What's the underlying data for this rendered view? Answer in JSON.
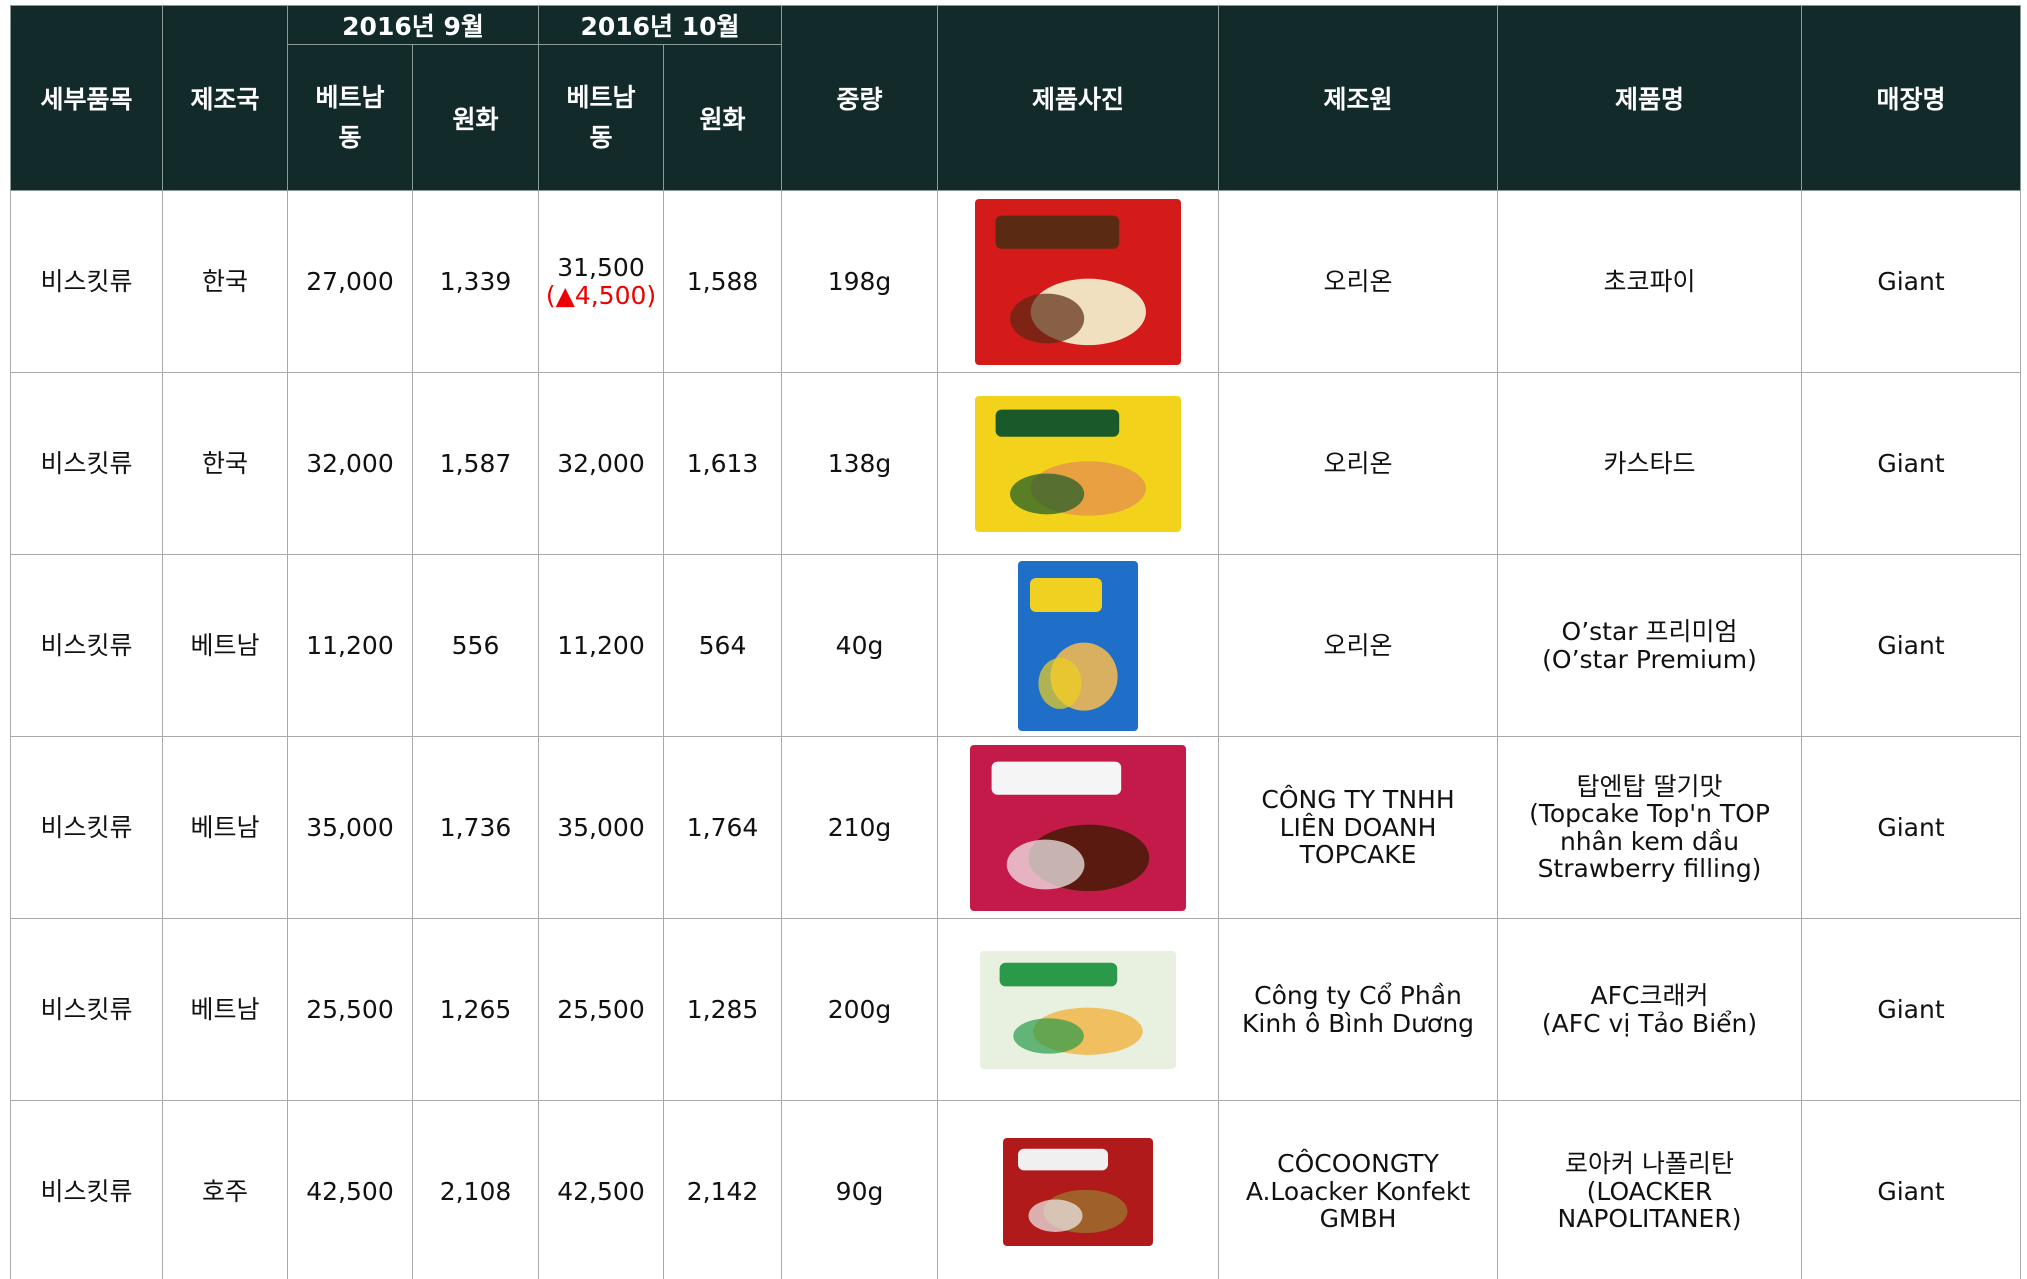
{
  "table": {
    "header": {
      "columns": [
        "세부품목",
        "제조국",
        "2016년 9월",
        "2016년 10월",
        "베트남동",
        "원화",
        "베트남동",
        "원화",
        "중량",
        "제품사진",
        "제조원",
        "제품명",
        "매장명"
      ]
    },
    "rows": [
      {
        "item": "비스킷류",
        "country": "한국",
        "sep_vnd": "27,000",
        "sep_krw": "1,339",
        "oct_vnd": "31,500",
        "oct_change": "(▲4,500)",
        "oct_krw": "1,588",
        "weight": "198g",
        "maker": "오리온",
        "name": "초코파이",
        "store": "Giant"
      },
      {
        "item": "비스킷류",
        "country": "한국",
        "sep_vnd": "32,000",
        "sep_krw": "1,587",
        "oct_vnd": "32,000",
        "oct_krw": "1,613",
        "weight": "138g",
        "maker": "오리온",
        "name": "카스타드",
        "store": "Giant"
      },
      {
        "item": "비스킷류",
        "country": "베트남",
        "sep_vnd": "11,200",
        "sep_krw": "556",
        "oct_vnd": "11,200",
        "oct_krw": "564",
        "weight": "40g",
        "maker": "오리온",
        "name": "O’star 프리미엄\n(O’star Premium)",
        "store": "Giant"
      },
      {
        "item": "비스킷류",
        "country": "베트남",
        "sep_vnd": "35,000",
        "sep_krw": "1,736",
        "oct_vnd": "35,000",
        "oct_krw": "1,764",
        "weight": "210g",
        "maker": "CÔNG TY TNHH\nLIÊN DOANH\nTOPCAKE",
        "name": "탑엔탑 딸기맛\n(Topcake Top'n TOP\nnhân kem dầu\nStrawberry filling)",
        "store": "Giant"
      },
      {
        "item": "비스킷류",
        "country": "베트남",
        "sep_vnd": "25,500",
        "sep_krw": "1,265",
        "oct_vnd": "25,500",
        "oct_krw": "1,285",
        "weight": "200g",
        "maker": "Công ty  Cổ Phần\nKinh ô Bình Dương",
        "name": "AFC크래커\n(AFC vị Tảo Biển)",
        "store": "Giant"
      },
      {
        "item": "비스킷류",
        "country": "호주",
        "sep_vnd": "42,500",
        "sep_krw": "2,108",
        "oct_vnd": "42,500",
        "oct_krw": "2,142",
        "weight": "90g",
        "maker": "CÔCOONGTY\nA.Loacker Konfekt\nGMBH",
        "name": "로아커 나폴리탄\n(LOACKER\nNAPOLITANER)",
        "store": "Giant"
      }
    ]
  }
}
